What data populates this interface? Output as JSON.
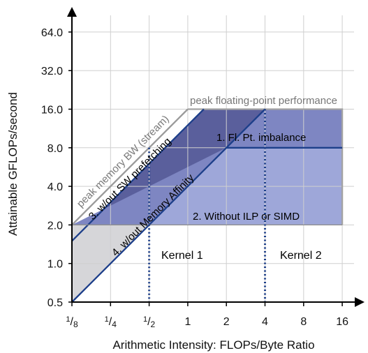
{
  "chart_data": {
    "type": "line",
    "scale": "log2",
    "xlabel": "Arithmetic Intensity: FLOPs/Byte Ratio",
    "ylabel": "Attainable GFLOPs/second",
    "x_ticks": [
      {
        "value": 0.125,
        "label": "1/8"
      },
      {
        "value": 0.25,
        "label": "1/4"
      },
      {
        "value": 0.5,
        "label": "1/2"
      },
      {
        "value": 1,
        "label": "1"
      },
      {
        "value": 2,
        "label": "2"
      },
      {
        "value": 4,
        "label": "4"
      },
      {
        "value": 8,
        "label": "8"
      },
      {
        "value": 16,
        "label": "16"
      }
    ],
    "y_ticks": [
      {
        "value": 0.5,
        "label": "0.5"
      },
      {
        "value": 1,
        "label": "1.0"
      },
      {
        "value": 2,
        "label": "2.0"
      },
      {
        "value": 4,
        "label": "4.0"
      },
      {
        "value": 8,
        "label": "8.0"
      },
      {
        "value": 16,
        "label": "16.0"
      },
      {
        "value": 32,
        "label": "32.0"
      },
      {
        "value": 64,
        "label": "64.0"
      }
    ],
    "xlim": [
      0.125,
      16
    ],
    "ylim": [
      0.5,
      64
    ],
    "ceilings": {
      "peak_flops": {
        "label": "peak floating-point performance",
        "value": 16,
        "x_start": 1
      },
      "fp_imbalance": {
        "label": "1. Fl. Pt. imbalance",
        "value": 8,
        "x_start": 0.5
      },
      "no_ilp_simd": {
        "label": "2. Without ILP or SIMD",
        "value": 2,
        "x_start": 0.125
      }
    },
    "bandwidth_rooflines": [
      {
        "label": "peak memory BW (stream)",
        "gbps": 16
      },
      {
        "label": "3. w/out SW prefetching",
        "gbps": 12
      },
      {
        "label": "4. w/out Memory Affinity",
        "gbps": 4
      }
    ],
    "kernels": [
      {
        "label": "Kernel 1",
        "x": 0.5
      },
      {
        "label": "Kernel 2",
        "x": 4
      }
    ],
    "colors": {
      "roof": "#1d3f8a",
      "region_dark": "#5a5f9c",
      "region_mid": "#7e86c2",
      "region_light": "#9ea7d9",
      "region_gray": "#d6d6d9",
      "peak_text": "#777777"
    }
  }
}
